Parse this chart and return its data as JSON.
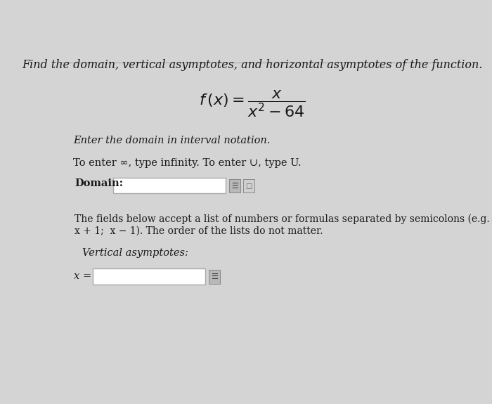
{
  "title": "Find the domain, vertical asymptotes, and horizontal asymptotes of the function.",
  "line1": "Enter the domain in interval notation.",
  "line2": "To enter ∞, type infinity. To enter ∪, type U.",
  "domain_label": "Domain:",
  "fields_text_line1": "The fields below accept a list of numbers or formulas separated by semicolons (e.g.",
  "fields_text_line2": "x + 1;  x − 1). The order of the lists do not matter.",
  "vert_label": "Vertical asymptotes:",
  "x_eq_label": "x =",
  "bg_color": "#d4d4d4",
  "box_color": "#ffffff",
  "border_color": "#aaaaaa",
  "text_color": "#1a1a1a",
  "title_fontsize": 11.5,
  "body_fontsize": 10.5,
  "small_fontsize": 10.0
}
